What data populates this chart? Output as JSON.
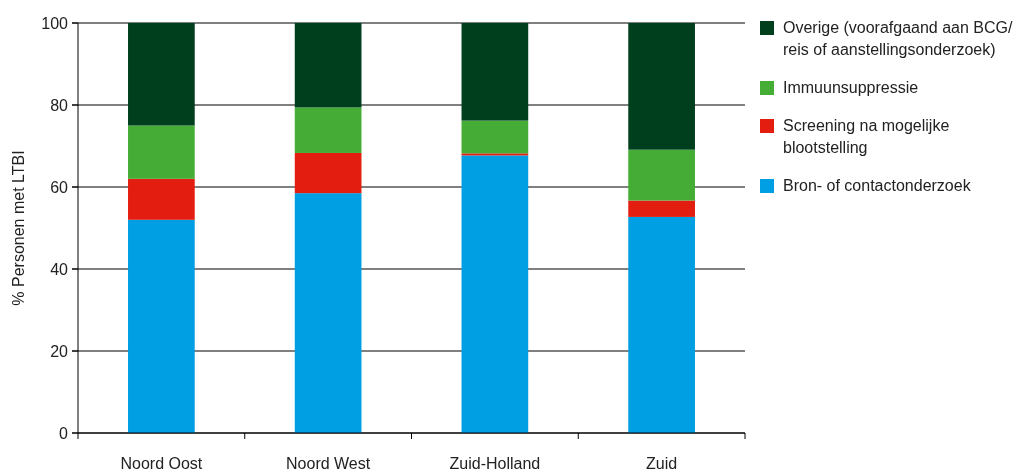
{
  "chart_data": {
    "type": "bar",
    "stacked": true,
    "ylabel": "% Personen met LTBI",
    "categories": [
      "Noord Oost",
      "Noord West",
      "Zuid-Holland",
      "Zuid"
    ],
    "series": [
      {
        "name": "Bron- of contactonderzoek",
        "color": "#009fe3",
        "values": [
          52,
          58.5,
          67.7,
          52.7
        ]
      },
      {
        "name": "Screening na mogelijke blootstelling",
        "color": "#e31e10",
        "values": [
          10,
          9.8,
          0.5,
          4
        ]
      },
      {
        "name": "Immuunsuppressie",
        "color": "#45ad35",
        "values": [
          13,
          11.1,
          8,
          12.4
        ]
      },
      {
        "name": "Overige (voorafgaand aan BCG/ reis of aanstellingsonderzoek)",
        "color": "#003f1d",
        "values": [
          25,
          20.6,
          23.8,
          30.9
        ]
      }
    ],
    "ylim": [
      0,
      100
    ],
    "yticks": [
      0,
      20,
      40,
      60,
      80,
      100
    ],
    "grid": "y",
    "legend": "right"
  }
}
